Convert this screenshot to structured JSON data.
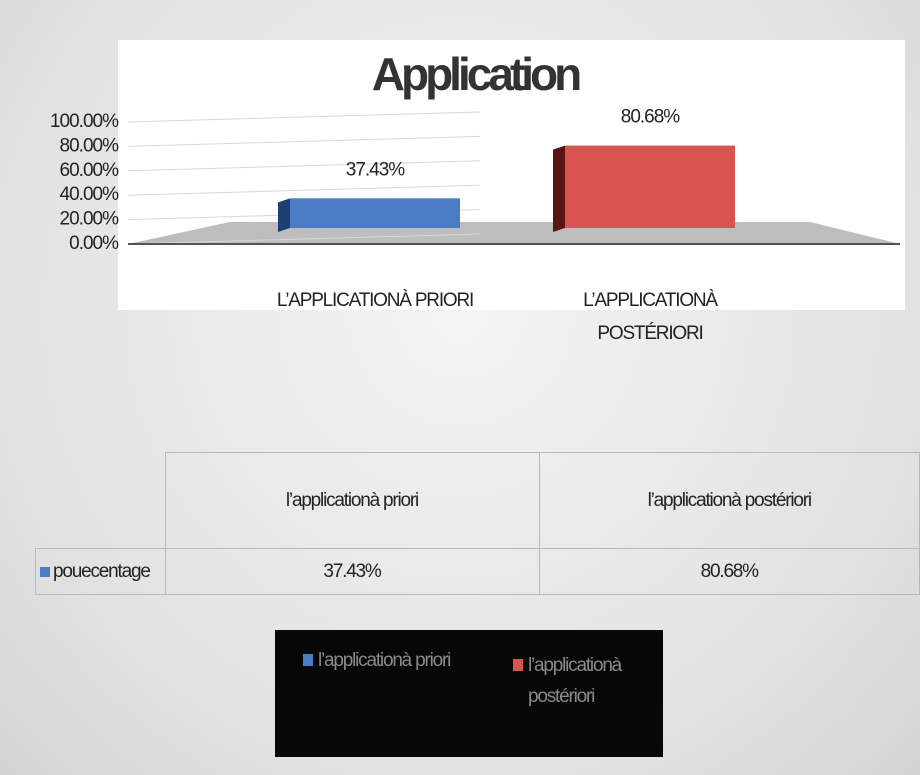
{
  "chart_data": {
    "type": "bar",
    "title": "Application",
    "categories": [
      "L’APPLICATIONÀ PRIORI",
      "L’APPLICATIONÀ POSTÉRIORI"
    ],
    "values": [
      37.43,
      80.68
    ],
    "value_labels": [
      "37.43%",
      "80.68%"
    ],
    "colors": [
      "#4a7cc6",
      "#d9534f"
    ],
    "legend": [
      "l’applicationà priori",
      "l’applicationà postériori"
    ],
    "table_row_label": "pouecentage",
    "ylim": [
      0,
      100
    ],
    "yticks": [
      {
        "value": 0,
        "label": "0.00%"
      },
      {
        "value": 20,
        "label": "20.00%"
      },
      {
        "value": 40,
        "label": "40.00%"
      },
      {
        "value": 60,
        "label": "60.00%"
      },
      {
        "value": 80,
        "label": "80.00%"
      },
      {
        "value": 100,
        "label": "100.00%"
      }
    ],
    "grid": true
  }
}
